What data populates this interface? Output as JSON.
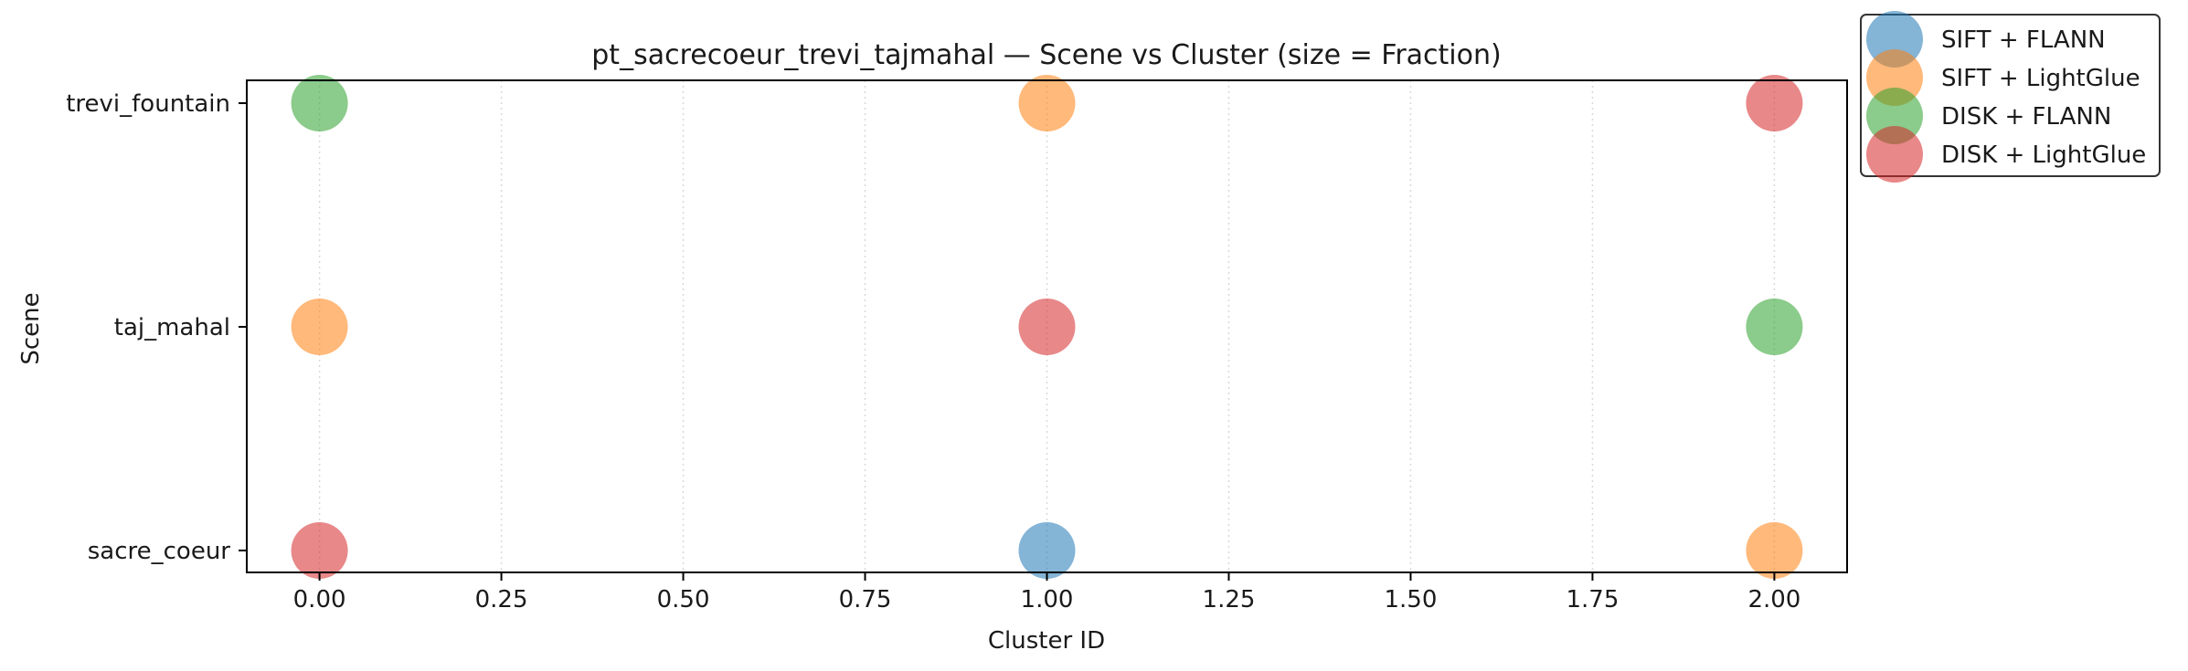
{
  "chart_data": {
    "type": "scatter",
    "title": "pt_sacrecoeur_trevi_tajmahal — Scene vs Cluster (size = Fraction)",
    "xlabel": "Cluster ID",
    "ylabel": "Scene",
    "xlim": [
      -0.1,
      2.1
    ],
    "x_ticks": [
      "0.00",
      "0.25",
      "0.50",
      "0.75",
      "1.00",
      "1.25",
      "1.50",
      "1.75",
      "2.00"
    ],
    "y_categories": [
      "sacre_coeur",
      "taj_mahal",
      "trevi_fountain"
    ],
    "grid": "x-only dotted",
    "legend_position": "outside top-right",
    "series": [
      {
        "name": "SIFT + FLANN",
        "color": "#1f77b4",
        "points": [
          {
            "x": 1,
            "y": "sacre_coeur"
          }
        ]
      },
      {
        "name": "SIFT + LightGlue",
        "color": "#ff7f0e",
        "points": [
          {
            "x": 1,
            "y": "trevi_fountain"
          },
          {
            "x": 0,
            "y": "taj_mahal"
          },
          {
            "x": 2,
            "y": "sacre_coeur"
          }
        ]
      },
      {
        "name": "DISK + FLANN",
        "color": "#2ca02c",
        "points": [
          {
            "x": 0,
            "y": "trevi_fountain"
          },
          {
            "x": 2,
            "y": "taj_mahal"
          }
        ]
      },
      {
        "name": "DISK + LightGlue",
        "color": "#d62728",
        "points": [
          {
            "x": 2,
            "y": "trevi_fountain"
          },
          {
            "x": 1,
            "y": "taj_mahal"
          },
          {
            "x": 0,
            "y": "sacre_coeur"
          }
        ]
      }
    ]
  }
}
